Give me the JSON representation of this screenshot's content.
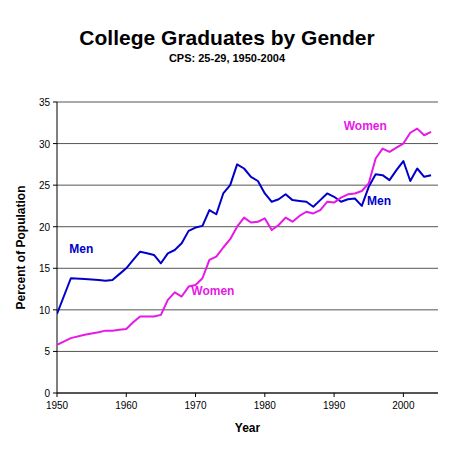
{
  "chart_data": {
    "type": "line",
    "title": "College Graduates by Gender",
    "subtitle": "CPS: 25-29, 1950-2004",
    "x_label": "Year",
    "y_label": "Percent of Population",
    "x": [
      1950,
      1952,
      1954,
      1956,
      1957,
      1958,
      1959,
      1960,
      1961,
      1962,
      1963,
      1964,
      1965,
      1966,
      1967,
      1968,
      1969,
      1970,
      1971,
      1972,
      1973,
      1974,
      1975,
      1976,
      1977,
      1978,
      1979,
      1980,
      1981,
      1982,
      1983,
      1984,
      1985,
      1986,
      1987,
      1988,
      1989,
      1990,
      1991,
      1992,
      1993,
      1994,
      1995,
      1996,
      1997,
      1998,
      1999,
      2000,
      2001,
      2002,
      2003,
      2004
    ],
    "series": [
      {
        "name": "Men",
        "color": "#0000c8",
        "values": [
          9.5,
          13.8,
          13.7,
          13.6,
          13.5,
          13.6,
          14.3,
          15.0,
          16.0,
          17.0,
          16.8,
          16.6,
          15.6,
          16.8,
          17.2,
          18.0,
          19.5,
          19.9,
          20.1,
          22.0,
          21.5,
          24.0,
          25.0,
          27.5,
          27.0,
          26.0,
          25.5,
          24.0,
          23.0,
          23.3,
          23.9,
          23.2,
          23.1,
          23.0,
          22.4,
          23.2,
          24.0,
          23.6,
          23.0,
          23.3,
          23.4,
          22.5,
          24.8,
          26.3,
          26.2,
          25.6,
          26.8,
          27.9,
          25.5,
          27.0,
          26.0,
          26.2
        ]
      },
      {
        "name": "Women",
        "color": "#e619e6",
        "values": [
          5.8,
          6.6,
          7.0,
          7.3,
          7.5,
          7.5,
          7.6,
          7.7,
          8.5,
          9.2,
          9.2,
          9.2,
          9.4,
          11.2,
          12.1,
          11.6,
          12.8,
          13.0,
          13.8,
          16.0,
          16.4,
          17.5,
          18.5,
          20.0,
          21.1,
          20.5,
          20.6,
          21.0,
          19.6,
          20.2,
          21.1,
          20.6,
          21.3,
          21.8,
          21.6,
          22.0,
          23.0,
          22.9,
          23.5,
          23.9,
          24.0,
          24.3,
          25.2,
          28.2,
          29.4,
          29.0,
          29.5,
          30.0,
          31.3,
          31.8,
          31.0,
          31.4
        ]
      }
    ],
    "annotations": [
      {
        "text": "Men",
        "x": 1953.5,
        "y": 16.8
      },
      {
        "text": "Women",
        "x": 1972.5,
        "y": 11.8
      },
      {
        "text": "Women",
        "x": 1994.5,
        "y": 31.6
      },
      {
        "text": "Men",
        "x": 1996.5,
        "y": 22.6
      }
    ],
    "xlim": [
      1950,
      2005
    ],
    "xticks": [
      1950,
      1960,
      1970,
      1980,
      1990,
      2000
    ],
    "ylim": [
      0,
      35
    ],
    "yticks": [
      0,
      5,
      10,
      15,
      20,
      25,
      30,
      35
    ],
    "grid": true
  }
}
